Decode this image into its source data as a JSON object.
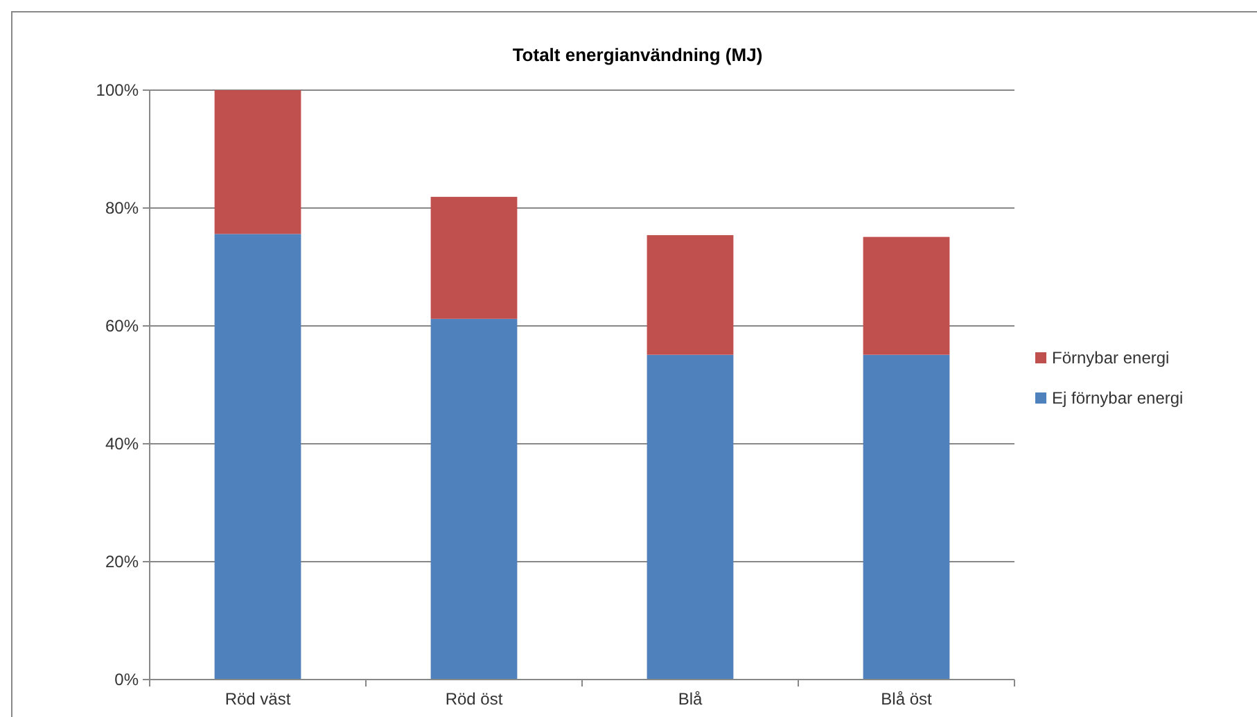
{
  "chart_data": {
    "type": "bar",
    "title": "Totalt energianvändning (MJ)",
    "categories": [
      "Röd väst",
      "Röd öst",
      "Blå",
      "Blå öst"
    ],
    "stacked": true,
    "series": [
      {
        "name": "Ej förnybar energi",
        "color": "#4f81bd",
        "values": [
          75.6,
          61.2,
          55.1,
          55.1
        ]
      },
      {
        "name": "Förnybar energi",
        "color": "#c0504d",
        "values": [
          24.4,
          20.7,
          20.3,
          20.0
        ]
      }
    ],
    "ylim": [
      0,
      100
    ],
    "yticks": [
      {
        "value": 0,
        "label": "0%"
      },
      {
        "value": 20,
        "label": "20%"
      },
      {
        "value": 40,
        "label": "40%"
      },
      {
        "value": 60,
        "label": "60%"
      },
      {
        "value": 80,
        "label": "80%"
      },
      {
        "value": 100,
        "label": "100%"
      }
    ],
    "grid": "y",
    "legend": "right"
  }
}
